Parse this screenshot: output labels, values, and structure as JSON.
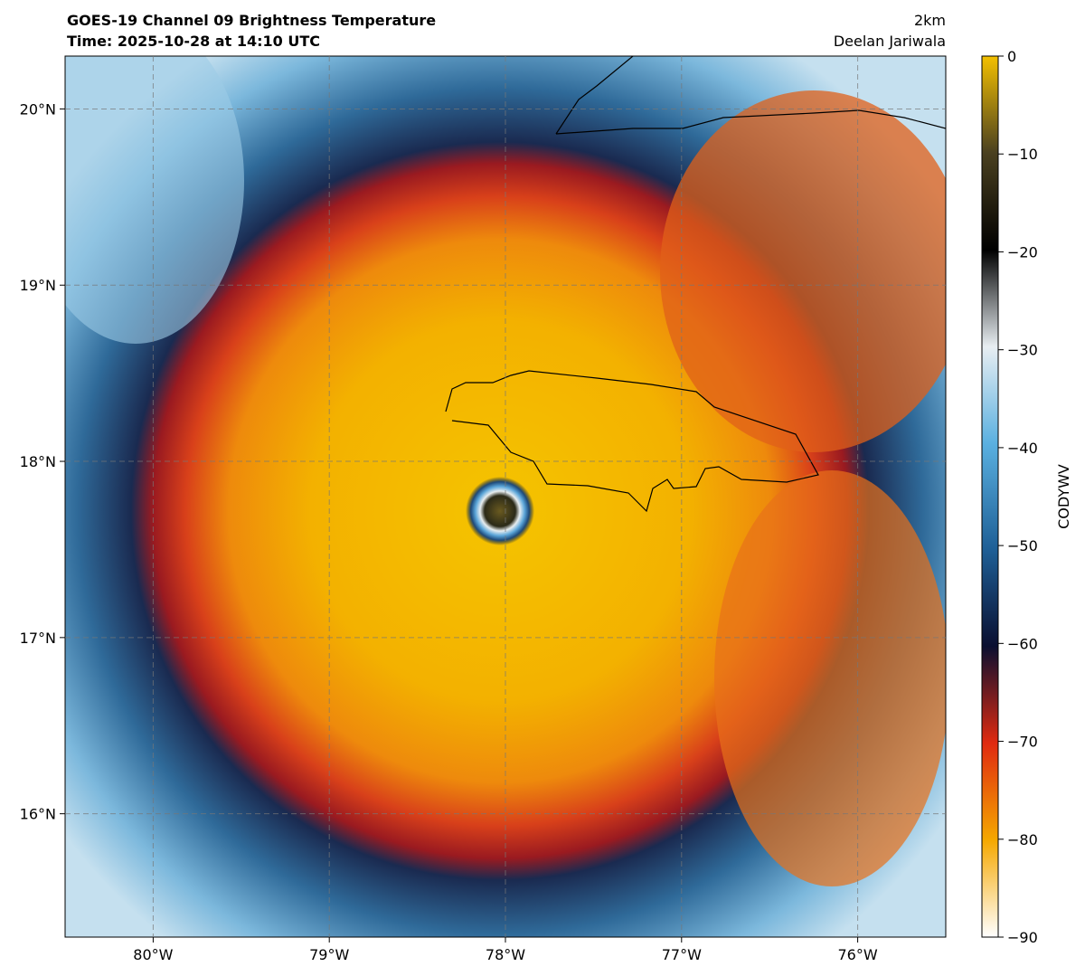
{
  "header": {
    "title": "GOES-19 Channel 09 Brightness Temperature",
    "time": "Time: 2025-10-28 at 14:10 UTC",
    "resolution": "2km",
    "author": "Deelan Jariwala"
  },
  "map": {
    "xlim": [
      -80.5,
      -75.5
    ],
    "ylim": [
      15.3,
      20.3
    ],
    "xticks": [
      {
        "value": -80,
        "label": "80°W"
      },
      {
        "value": -79,
        "label": "79°W"
      },
      {
        "value": -78,
        "label": "78°W"
      },
      {
        "value": -77,
        "label": "77°W"
      },
      {
        "value": -76,
        "label": "76°W"
      }
    ],
    "yticks": [
      {
        "value": 16,
        "label": "16°N"
      },
      {
        "value": 17,
        "label": "17°N"
      },
      {
        "value": 18,
        "label": "18°N"
      },
      {
        "value": 19,
        "label": "19°N"
      },
      {
        "value": 20,
        "label": "20°N"
      }
    ],
    "grid": true
  },
  "colorbar": {
    "label": "CODYWV",
    "lim": [
      -90,
      0
    ],
    "ticks": [
      0,
      {
        "value": -10,
        "label": "−10"
      },
      {
        "value": -20,
        "label": "−20"
      },
      {
        "value": -30,
        "label": "−30"
      },
      {
        "value": -40,
        "label": "−40"
      },
      {
        "value": -50,
        "label": "−50"
      },
      {
        "value": -60,
        "label": "−60"
      },
      {
        "value": -70,
        "label": "−70"
      },
      {
        "value": -80,
        "label": "−80"
      },
      {
        "value": -90,
        "label": "−90"
      }
    ]
  }
}
